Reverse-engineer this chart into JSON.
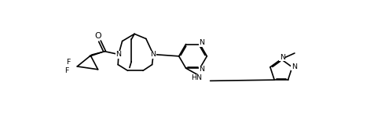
{
  "bg": "#ffffff",
  "lc": "#000000",
  "lw": 1.2,
  "fs": 6.8,
  "figsize": [
    4.76,
    1.56
  ],
  "dpi": 100,
  "xlim": [
    0,
    476
  ],
  "ylim": [
    0,
    156
  ]
}
